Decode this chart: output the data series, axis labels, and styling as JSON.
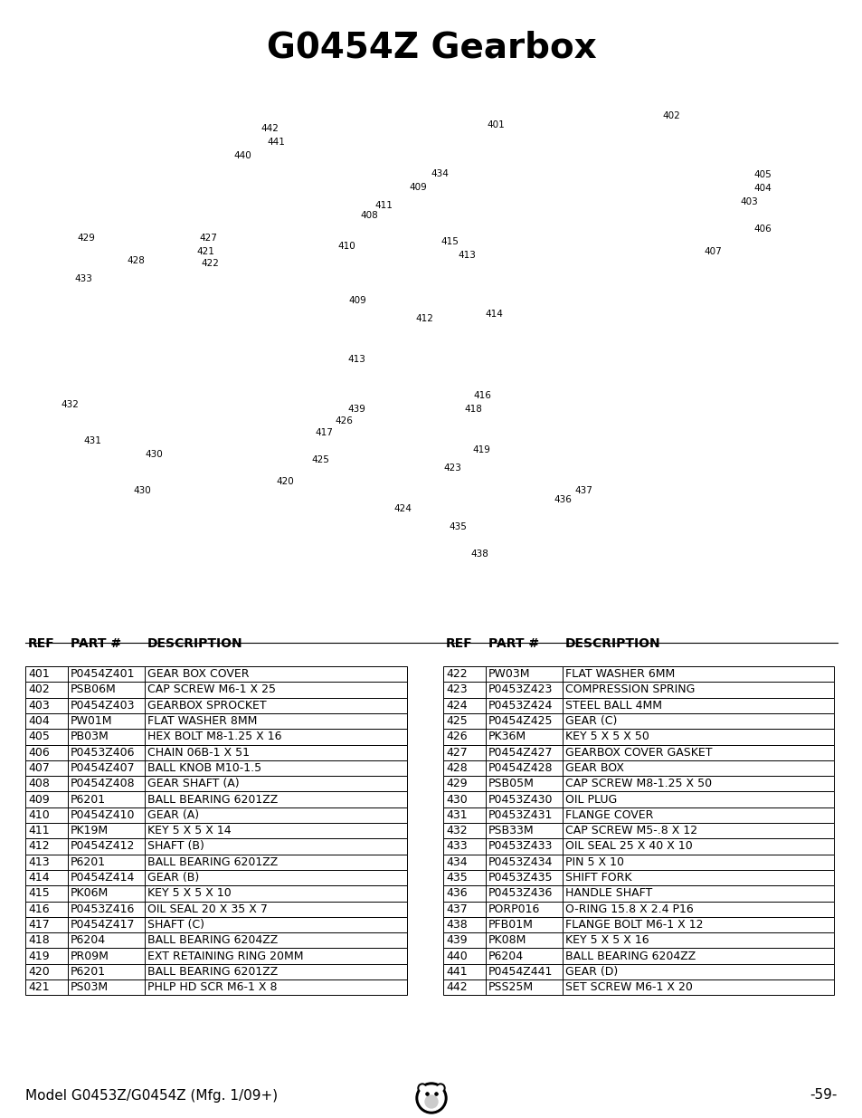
{
  "title": "G0454Z Gearbox",
  "title_fontsize": 28,
  "title_fontweight": "bold",
  "background_color": "#ffffff",
  "table_left": {
    "headers": [
      "REF",
      "PART #",
      "DESCRIPTION"
    ],
    "rows": [
      [
        "401",
        "P0454Z401",
        "GEAR BOX COVER"
      ],
      [
        "402",
        "PSB06M",
        "CAP SCREW M6-1 X 25"
      ],
      [
        "403",
        "P0454Z403",
        "GEARBOX SPROCKET"
      ],
      [
        "404",
        "PW01M",
        "FLAT WASHER 8MM"
      ],
      [
        "405",
        "PB03M",
        "HEX BOLT M8-1.25 X 16"
      ],
      [
        "406",
        "P0453Z406",
        "CHAIN 06B-1 X 51"
      ],
      [
        "407",
        "P0454Z407",
        "BALL KNOB M10-1.5"
      ],
      [
        "408",
        "P0454Z408",
        "GEAR SHAFT (A)"
      ],
      [
        "409",
        "P6201",
        "BALL BEARING 6201ZZ"
      ],
      [
        "410",
        "P0454Z410",
        "GEAR (A)"
      ],
      [
        "411",
        "PK19M",
        "KEY 5 X 5 X 14"
      ],
      [
        "412",
        "P0454Z412",
        "SHAFT (B)"
      ],
      [
        "413",
        "P6201",
        "BALL BEARING 6201ZZ"
      ],
      [
        "414",
        "P0454Z414",
        "GEAR (B)"
      ],
      [
        "415",
        "PK06M",
        "KEY 5 X 5 X 10"
      ],
      [
        "416",
        "P0453Z416",
        "OIL SEAL 20 X 35 X 7"
      ],
      [
        "417",
        "P0454Z417",
        "SHAFT (C)"
      ],
      [
        "418",
        "P6204",
        "BALL BEARING 6204ZZ"
      ],
      [
        "419",
        "PR09M",
        "EXT RETAINING RING 20MM"
      ],
      [
        "420",
        "P6201",
        "BALL BEARING 6201ZZ"
      ],
      [
        "421",
        "PS03M",
        "PHLP HD SCR M6-1 X 8"
      ]
    ]
  },
  "table_right": {
    "headers": [
      "REF",
      "PART #",
      "DESCRIPTION"
    ],
    "rows": [
      [
        "422",
        "PW03M",
        "FLAT WASHER 6MM"
      ],
      [
        "423",
        "P0453Z423",
        "COMPRESSION SPRING"
      ],
      [
        "424",
        "P0453Z424",
        "STEEL BALL 4MM"
      ],
      [
        "425",
        "P0454Z425",
        "GEAR (C)"
      ],
      [
        "426",
        "PK36M",
        "KEY 5 X 5 X 50"
      ],
      [
        "427",
        "P0454Z427",
        "GEARBOX COVER GASKET"
      ],
      [
        "428",
        "P0454Z428",
        "GEAR BOX"
      ],
      [
        "429",
        "PSB05M",
        "CAP SCREW M8-1.25 X 50"
      ],
      [
        "430",
        "P0453Z430",
        "OIL PLUG"
      ],
      [
        "431",
        "P0453Z431",
        "FLANGE COVER"
      ],
      [
        "432",
        "PSB33M",
        "CAP SCREW M5-.8 X 12"
      ],
      [
        "433",
        "P0453Z433",
        "OIL SEAL 25 X 40 X 10"
      ],
      [
        "434",
        "P0453Z434",
        "PIN 5 X 10"
      ],
      [
        "435",
        "P0453Z435",
        "SHIFT FORK"
      ],
      [
        "436",
        "P0453Z436",
        "HANDLE SHAFT"
      ],
      [
        "437",
        "PORP016",
        "O-RING 15.8 X 2.4 P16"
      ],
      [
        "438",
        "PFB01M",
        "FLANGE BOLT M6-1 X 12"
      ],
      [
        "439",
        "PK08M",
        "KEY 5 X 5 X 16"
      ],
      [
        "440",
        "P6204",
        "BALL BEARING 6204ZZ"
      ],
      [
        "441",
        "P0454Z441",
        "GEAR (D)"
      ],
      [
        "442",
        "PSS25M",
        "SET SCREW M6-1 X 20"
      ]
    ]
  },
  "footer_left": "Model G0453Z/G0454Z (Mfg. 1/09+)",
  "footer_right": "-59-",
  "footer_fontsize": 11,
  "header_fontsize": 10,
  "table_fontsize": 9,
  "diagram_part_labels": [
    [
      "442",
      298,
      142
    ],
    [
      "441",
      305,
      157
    ],
    [
      "440",
      268,
      172
    ],
    [
      "401",
      548,
      138
    ],
    [
      "402",
      742,
      128
    ],
    [
      "405",
      843,
      193
    ],
    [
      "404",
      843,
      208
    ],
    [
      "403",
      828,
      223
    ],
    [
      "406",
      843,
      253
    ],
    [
      "407",
      788,
      278
    ],
    [
      "434",
      486,
      192
    ],
    [
      "409",
      462,
      207
    ],
    [
      "411",
      424,
      227
    ],
    [
      "408",
      408,
      238
    ],
    [
      "410",
      383,
      272
    ],
    [
      "415",
      497,
      267
    ],
    [
      "413",
      516,
      282
    ],
    [
      "427",
      230,
      263
    ],
    [
      "421",
      227,
      278
    ],
    [
      "422",
      232,
      291
    ],
    [
      "429",
      95,
      263
    ],
    [
      "428",
      150,
      288
    ],
    [
      "433",
      92,
      308
    ],
    [
      "409",
      395,
      332
    ],
    [
      "412",
      469,
      352
    ],
    [
      "414",
      546,
      347
    ],
    [
      "413",
      394,
      397
    ],
    [
      "416",
      533,
      437
    ],
    [
      "418",
      523,
      452
    ],
    [
      "439",
      394,
      452
    ],
    [
      "426",
      380,
      465
    ],
    [
      "417",
      358,
      478
    ],
    [
      "425",
      354,
      508
    ],
    [
      "419",
      532,
      497
    ],
    [
      "423",
      500,
      517
    ],
    [
      "420",
      315,
      532
    ],
    [
      "424",
      445,
      562
    ],
    [
      "432",
      77,
      447
    ],
    [
      "431",
      102,
      487
    ],
    [
      "430",
      170,
      502
    ],
    [
      "430",
      157,
      542
    ],
    [
      "437",
      645,
      542
    ],
    [
      "436",
      622,
      552
    ],
    [
      "435",
      506,
      582
    ],
    [
      "438",
      530,
      612
    ]
  ]
}
